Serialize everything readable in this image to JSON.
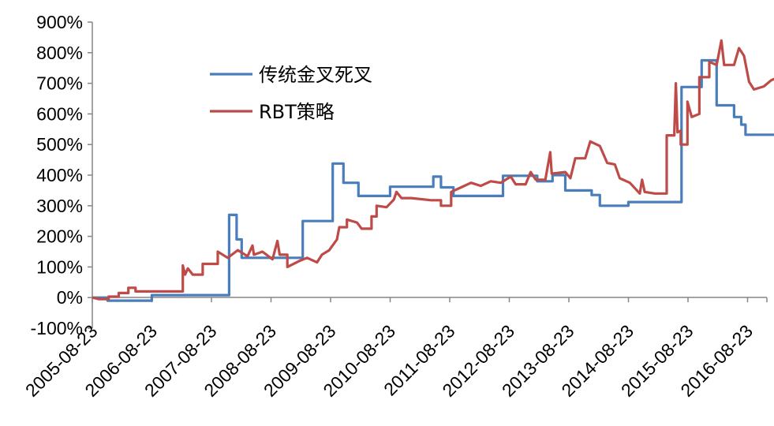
{
  "chart_data": {
    "type": "line",
    "title": "",
    "xlabel": "",
    "ylabel": "",
    "x_ticks": [
      "2005-08-23",
      "2006-08-23",
      "2007-08-23",
      "2008-08-23",
      "2009-08-23",
      "2010-08-23",
      "2011-08-23",
      "2012-08-23",
      "2013-08-23",
      "2014-08-23",
      "2015-08-23",
      "2016-08-23"
    ],
    "y_ticks": [
      "900%",
      "800%",
      "700%",
      "600%",
      "500%",
      "400%",
      "300%",
      "200%",
      "100%",
      "0%",
      "-100%"
    ],
    "ylim": [
      -100,
      900
    ],
    "xlim": [
      "2005-08-23",
      "2017-04-30"
    ],
    "grid": false,
    "legend_position": "top-left-inside",
    "series": [
      {
        "name": "传统金叉死叉",
        "color": "#4a7ebb",
        "points": [
          [
            "2005-08-23",
            0
          ],
          [
            "2005-11-25",
            0
          ],
          [
            "2005-11-25",
            -10
          ],
          [
            "2006-08-23",
            -10
          ],
          [
            "2006-08-23",
            8
          ],
          [
            "2007-12-10",
            8
          ],
          [
            "2007-12-10",
            270
          ],
          [
            "2008-01-25",
            270
          ],
          [
            "2008-01-25",
            190
          ],
          [
            "2008-02-25",
            190
          ],
          [
            "2008-02-25",
            130
          ],
          [
            "2009-03-05",
            130
          ],
          [
            "2009-03-05",
            250
          ],
          [
            "2009-09-05",
            250
          ],
          [
            "2009-09-05",
            438
          ],
          [
            "2009-11-10",
            438
          ],
          [
            "2009-11-10",
            375
          ],
          [
            "2010-02-10",
            375
          ],
          [
            "2010-02-10",
            332
          ],
          [
            "2010-08-23",
            332
          ],
          [
            "2010-08-23",
            362
          ],
          [
            "2011-05-15",
            362
          ],
          [
            "2011-05-15",
            395
          ],
          [
            "2011-07-01",
            395
          ],
          [
            "2011-07-01",
            360
          ],
          [
            "2011-09-15",
            360
          ],
          [
            "2011-09-15",
            332
          ],
          [
            "2012-07-15",
            332
          ],
          [
            "2012-07-15",
            398
          ],
          [
            "2013-02-10",
            398
          ],
          [
            "2013-02-10",
            380
          ],
          [
            "2013-05-15",
            380
          ],
          [
            "2013-05-15",
            400
          ],
          [
            "2013-08-01",
            400
          ],
          [
            "2013-08-01",
            350
          ],
          [
            "2014-01-10",
            350
          ],
          [
            "2014-01-10",
            335
          ],
          [
            "2014-03-01",
            335
          ],
          [
            "2014-03-01",
            300
          ],
          [
            "2014-08-23",
            300
          ],
          [
            "2014-08-23",
            312
          ],
          [
            "2015-07-15",
            312
          ],
          [
            "2015-07-15",
            688
          ],
          [
            "2015-11-15",
            688
          ],
          [
            "2015-11-15",
            775
          ],
          [
            "2016-02-15",
            775
          ],
          [
            "2016-02-15",
            628
          ],
          [
            "2016-06-01",
            628
          ],
          [
            "2016-06-01",
            590
          ],
          [
            "2016-07-15",
            590
          ],
          [
            "2016-07-15",
            565
          ],
          [
            "2016-08-10",
            565
          ],
          [
            "2016-08-10",
            532
          ],
          [
            "2017-04-20",
            532
          ]
        ]
      },
      {
        "name": "RBT策略",
        "color": "#be4b48",
        "points": [
          [
            "2005-08-23",
            0
          ],
          [
            "2005-10-01",
            -5
          ],
          [
            "2005-12-01",
            -5
          ],
          [
            "2005-12-01",
            3
          ],
          [
            "2006-02-01",
            3
          ],
          [
            "2006-02-01",
            15
          ],
          [
            "2006-04-01",
            15
          ],
          [
            "2006-04-01",
            32
          ],
          [
            "2006-05-15",
            32
          ],
          [
            "2006-05-15",
            20
          ],
          [
            "2007-03-01",
            20
          ],
          [
            "2007-03-01",
            105
          ],
          [
            "2007-03-15",
            75
          ],
          [
            "2007-04-01",
            95
          ],
          [
            "2007-05-01",
            75
          ],
          [
            "2007-07-01",
            75
          ],
          [
            "2007-07-01",
            110
          ],
          [
            "2007-10-01",
            110
          ],
          [
            "2007-10-01",
            150
          ],
          [
            "2007-12-01",
            130
          ],
          [
            "2008-02-01",
            155
          ],
          [
            "2008-04-01",
            135
          ],
          [
            "2008-05-01",
            170
          ],
          [
            "2008-05-10",
            140
          ],
          [
            "2008-07-01",
            150
          ],
          [
            "2008-09-01",
            125
          ],
          [
            "2008-10-01",
            185
          ],
          [
            "2008-10-15",
            140
          ],
          [
            "2008-12-01",
            140
          ],
          [
            "2008-12-01",
            100
          ],
          [
            "2009-02-15",
            120
          ],
          [
            "2009-04-01",
            130
          ],
          [
            "2009-06-01",
            115
          ],
          [
            "2009-07-01",
            140
          ],
          [
            "2009-08-15",
            155
          ],
          [
            "2009-10-01",
            190
          ],
          [
            "2009-10-15",
            230
          ],
          [
            "2009-12-01",
            230
          ],
          [
            "2009-12-01",
            255
          ],
          [
            "2010-02-01",
            245
          ],
          [
            "2010-03-01",
            225
          ],
          [
            "2010-05-01",
            225
          ],
          [
            "2010-05-01",
            265
          ],
          [
            "2010-06-01",
            265
          ],
          [
            "2010-06-01",
            300
          ],
          [
            "2010-08-01",
            295
          ],
          [
            "2010-09-15",
            320
          ],
          [
            "2010-10-01",
            345
          ],
          [
            "2010-11-01",
            325
          ],
          [
            "2011-01-01",
            325
          ],
          [
            "2011-05-01",
            318
          ],
          [
            "2011-07-01",
            318
          ],
          [
            "2011-07-01",
            300
          ],
          [
            "2011-09-01",
            300
          ],
          [
            "2011-09-01",
            345
          ],
          [
            "2011-11-01",
            360
          ],
          [
            "2012-01-01",
            375
          ],
          [
            "2012-03-01",
            365
          ],
          [
            "2012-05-01",
            380
          ],
          [
            "2012-07-01",
            375
          ],
          [
            "2012-09-01",
            395
          ],
          [
            "2012-10-01",
            370
          ],
          [
            "2012-12-01",
            370
          ],
          [
            "2013-01-01",
            410
          ],
          [
            "2013-02-01",
            385
          ],
          [
            "2013-04-01",
            385
          ],
          [
            "2013-05-01",
            475
          ],
          [
            "2013-05-10",
            405
          ],
          [
            "2013-08-01",
            410
          ],
          [
            "2013-09-01",
            390
          ],
          [
            "2013-10-01",
            455
          ],
          [
            "2013-12-01",
            455
          ],
          [
            "2014-01-01",
            510
          ],
          [
            "2014-03-01",
            495
          ],
          [
            "2014-04-15",
            440
          ],
          [
            "2014-06-01",
            435
          ],
          [
            "2014-07-01",
            390
          ],
          [
            "2014-09-01",
            375
          ],
          [
            "2014-11-01",
            340
          ],
          [
            "2014-11-15",
            385
          ],
          [
            "2014-12-01",
            345
          ],
          [
            "2015-02-01",
            340
          ],
          [
            "2015-04-15",
            340
          ],
          [
            "2015-04-15",
            530
          ],
          [
            "2015-06-01",
            530
          ],
          [
            "2015-06-01",
            545
          ],
          [
            "2015-06-10",
            700
          ],
          [
            "2015-06-20",
            540
          ],
          [
            "2015-07-10",
            545
          ],
          [
            "2015-07-10",
            500
          ],
          [
            "2015-08-20",
            500
          ],
          [
            "2015-08-20",
            640
          ],
          [
            "2015-09-15",
            590
          ],
          [
            "2015-11-01",
            600
          ],
          [
            "2015-11-01",
            720
          ],
          [
            "2016-01-01",
            720
          ],
          [
            "2016-01-01",
            770
          ],
          [
            "2016-02-15",
            760
          ],
          [
            "2016-03-15",
            840
          ],
          [
            "2016-04-01",
            760
          ],
          [
            "2016-06-01",
            760
          ],
          [
            "2016-07-01",
            815
          ],
          [
            "2016-08-01",
            790
          ],
          [
            "2016-09-01",
            705
          ],
          [
            "2016-10-01",
            680
          ],
          [
            "2016-12-01",
            690
          ],
          [
            "2017-01-15",
            710
          ],
          [
            "2017-03-01",
            720
          ],
          [
            "2017-04-20",
            722
          ]
        ]
      }
    ]
  }
}
